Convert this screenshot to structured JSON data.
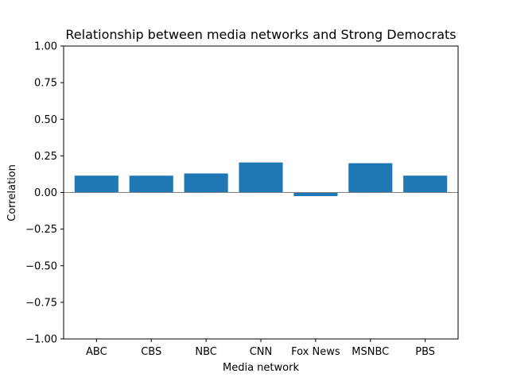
{
  "chart_data": {
    "type": "bar",
    "title": "Relationship between media networks and Strong Democrats",
    "xlabel": "Media network",
    "ylabel": "Correlation",
    "categories": [
      "ABC",
      "CBS",
      "NBC",
      "CNN",
      "Fox News",
      "MSNBC",
      "PBS"
    ],
    "values": [
      0.115,
      0.115,
      0.13,
      0.205,
      -0.025,
      0.2,
      0.115
    ],
    "ylim": [
      -1.0,
      1.0
    ],
    "yticks": [
      "1.00",
      "0.75",
      "0.50",
      "0.25",
      "0.00",
      "−0.25",
      "−0.50",
      "−0.75",
      "−1.00"
    ],
    "ytick_values": [
      1.0,
      0.75,
      0.5,
      0.25,
      0.0,
      -0.25,
      -0.5,
      -0.75,
      -1.0
    ],
    "bar_color": "#1f77b4",
    "zero_line_color": "#808080",
    "grid": false,
    "legend": false
  }
}
